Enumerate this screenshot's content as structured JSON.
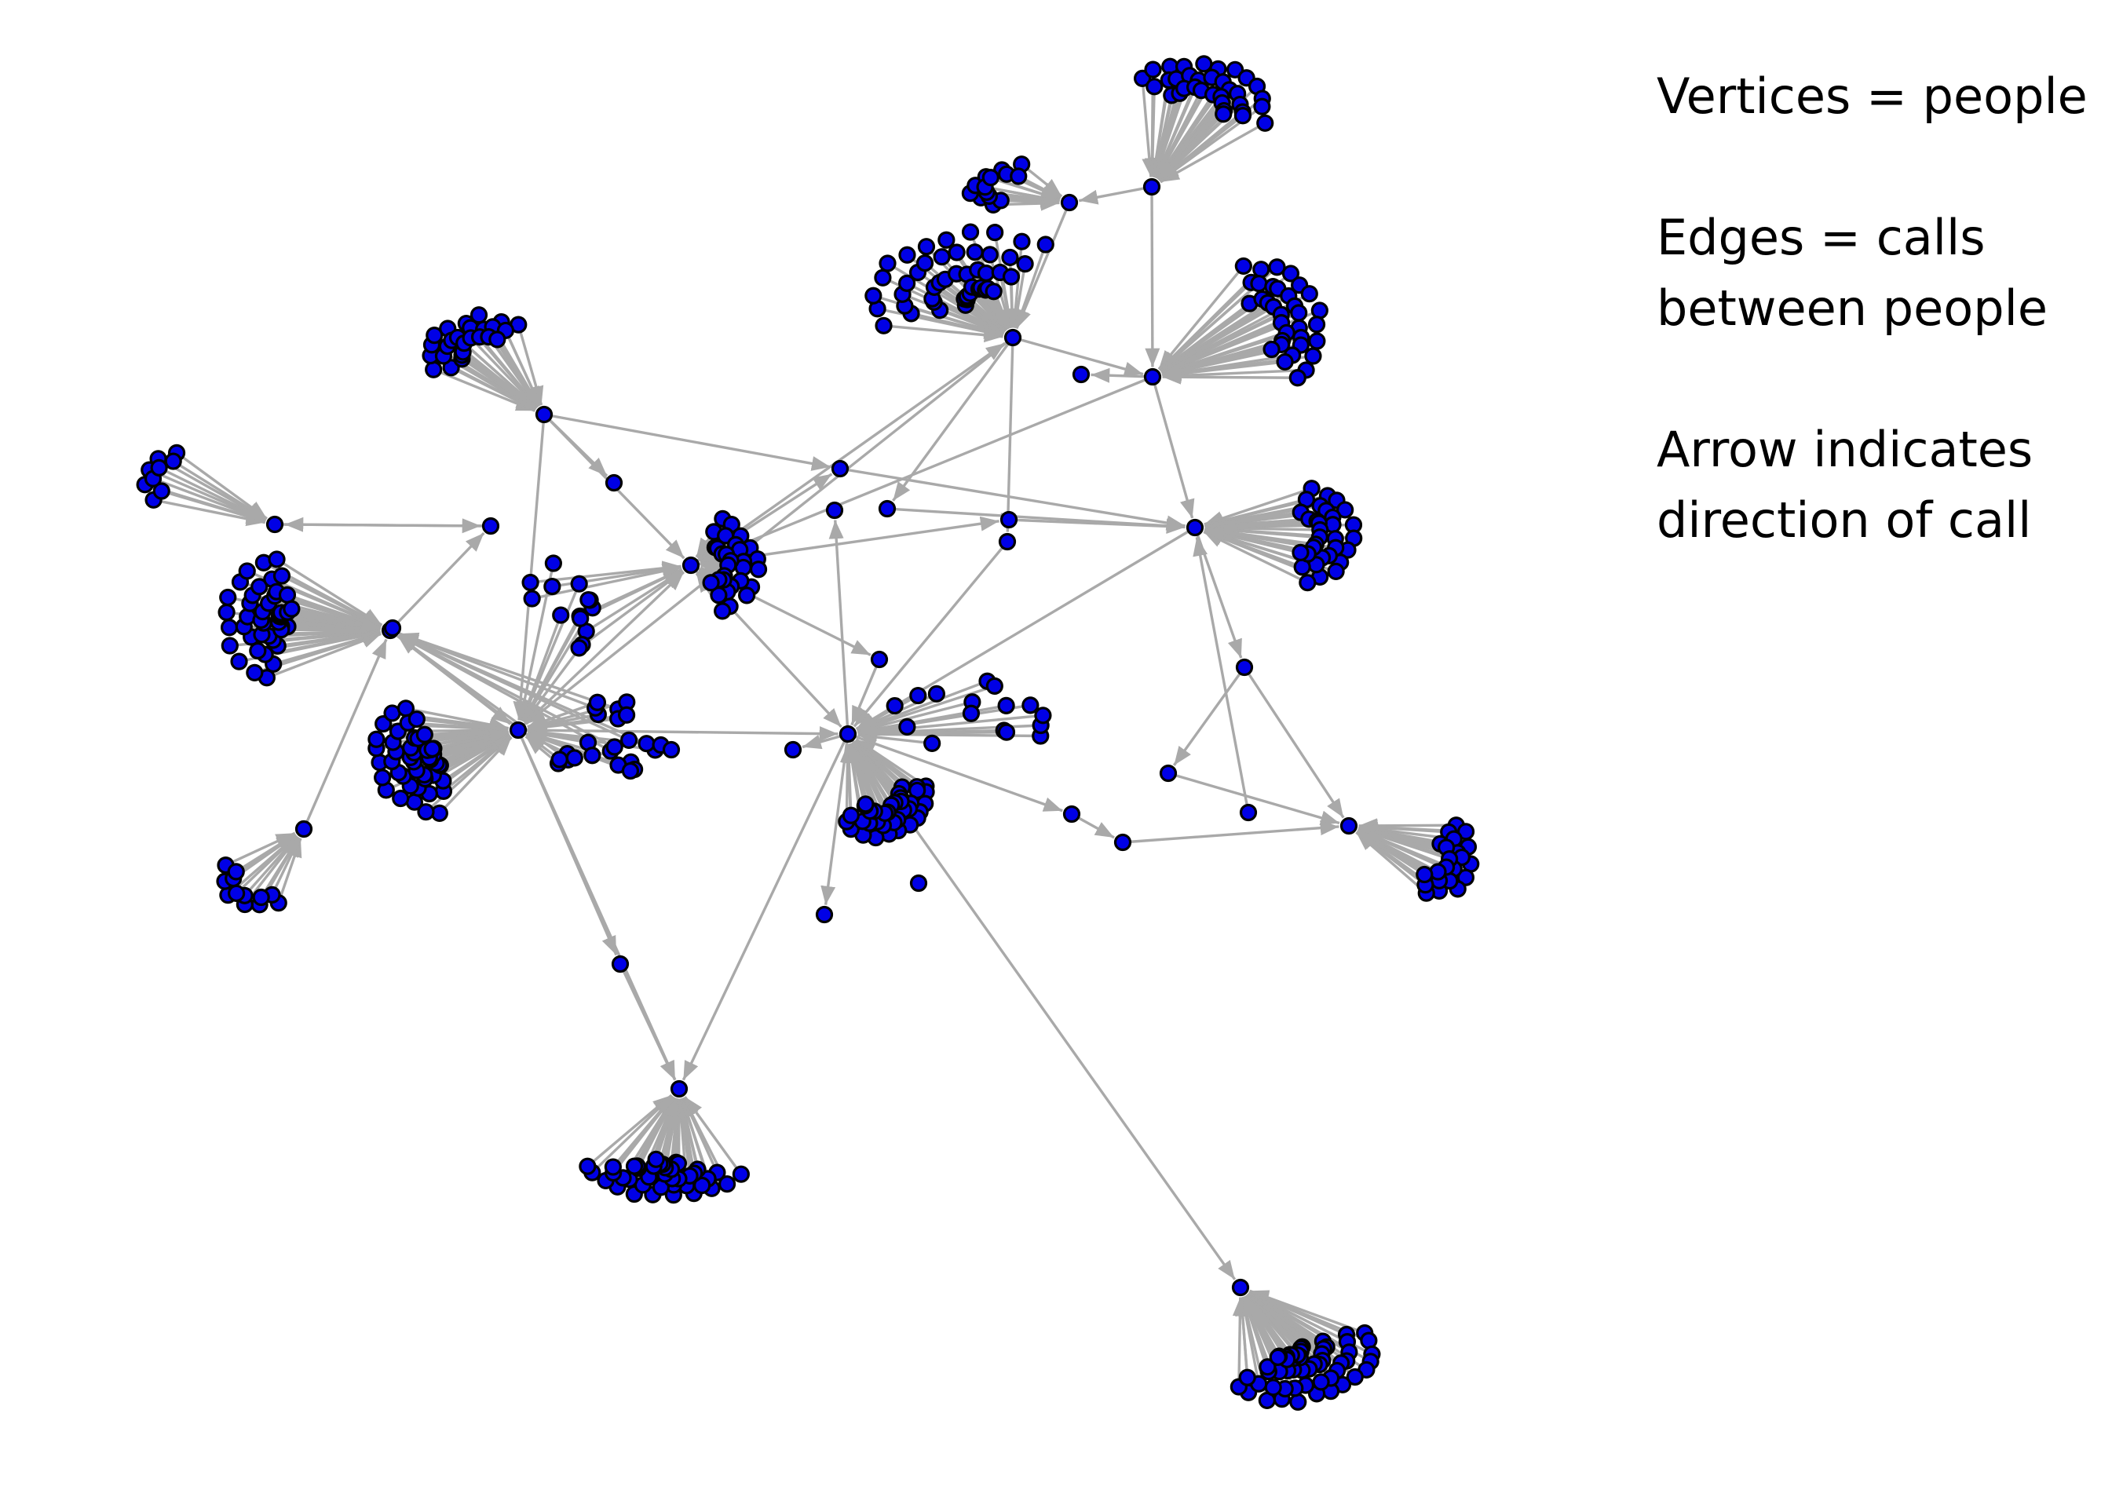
{
  "legend": {
    "vertices": "Vertices = people",
    "edges": "Edges = calls\nbetween people",
    "arrow": "Arrow indicates\ndirection of call"
  },
  "colors": {
    "vertex_fill": "#0000e6",
    "vertex_outline": "#000000",
    "edge": "#a9a9a9",
    "background": "#ffffff"
  }
}
